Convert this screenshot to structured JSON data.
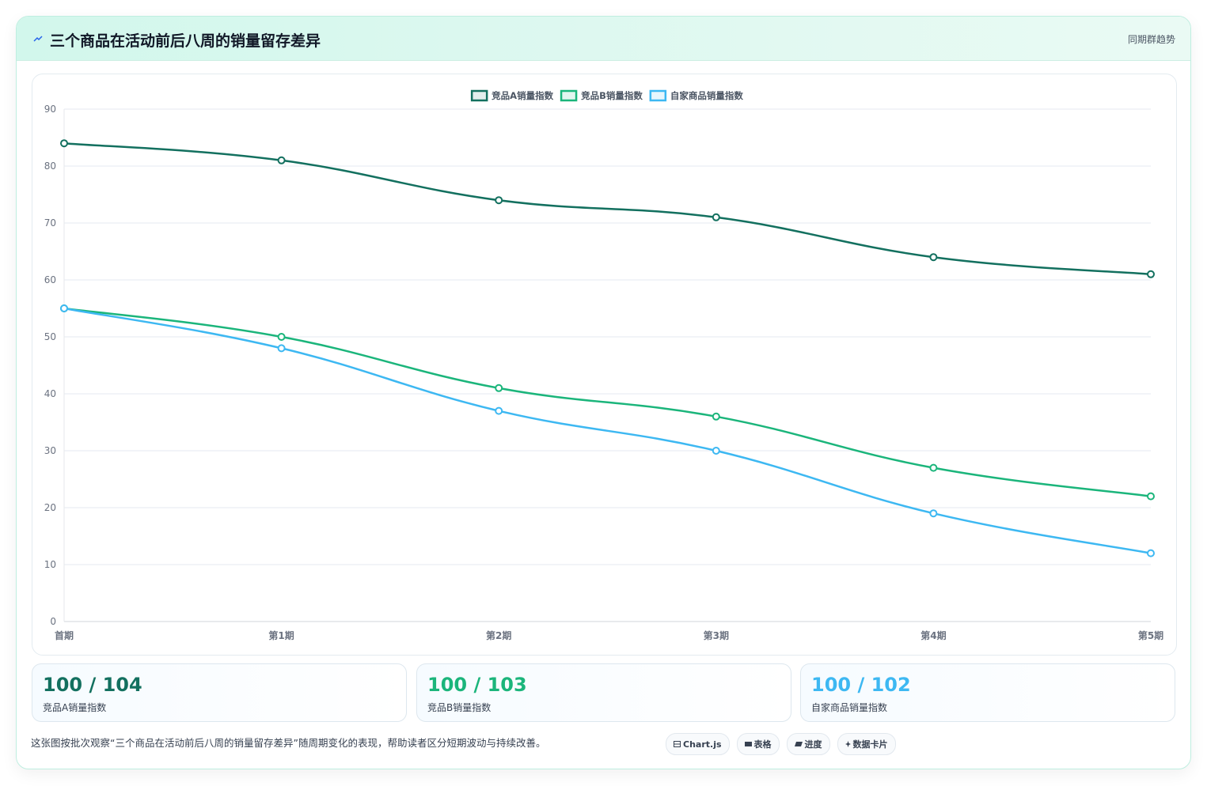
{
  "header": {
    "title": "三个商品在活动前后八周的销量留存差异",
    "badge": "同期群趋势"
  },
  "chart_data": {
    "type": "line",
    "categories": [
      "首期",
      "第1期",
      "第2期",
      "第3期",
      "第4期",
      "第5期"
    ],
    "series": [
      {
        "name": "竞品A销量指数",
        "color": "#13705f",
        "values": [
          84,
          81,
          74,
          71,
          64,
          61
        ]
      },
      {
        "name": "竞品B销量指数",
        "color": "#1bb57b",
        "values": [
          55,
          50,
          41,
          36,
          27,
          22
        ]
      },
      {
        "name": "自家商品销量指数",
        "color": "#3db8f2",
        "values": [
          55,
          48,
          37,
          30,
          19,
          12
        ]
      }
    ],
    "ylim": [
      0,
      90
    ],
    "yticks": [
      0,
      10,
      20,
      30,
      40,
      50,
      60,
      70,
      80,
      90
    ],
    "grid": true,
    "legend": "top"
  },
  "stats": [
    {
      "value": "100 / 104",
      "label": "竞品A销量指数",
      "color": "#13705f"
    },
    {
      "value": "100 / 103",
      "label": "竞品B销量指数",
      "color": "#1bb57b"
    },
    {
      "value": "100 / 102",
      "label": "自家商品销量指数",
      "color": "#3db8f2"
    }
  ],
  "footer": {
    "note": "这张图按批次观察“三个商品在活动前后八周的销量留存差异”随周期变化的表现，帮助读者区分短期波动与持续改善。",
    "tags": [
      "Chart.js",
      "表格",
      "进度",
      "数据卡片"
    ]
  }
}
